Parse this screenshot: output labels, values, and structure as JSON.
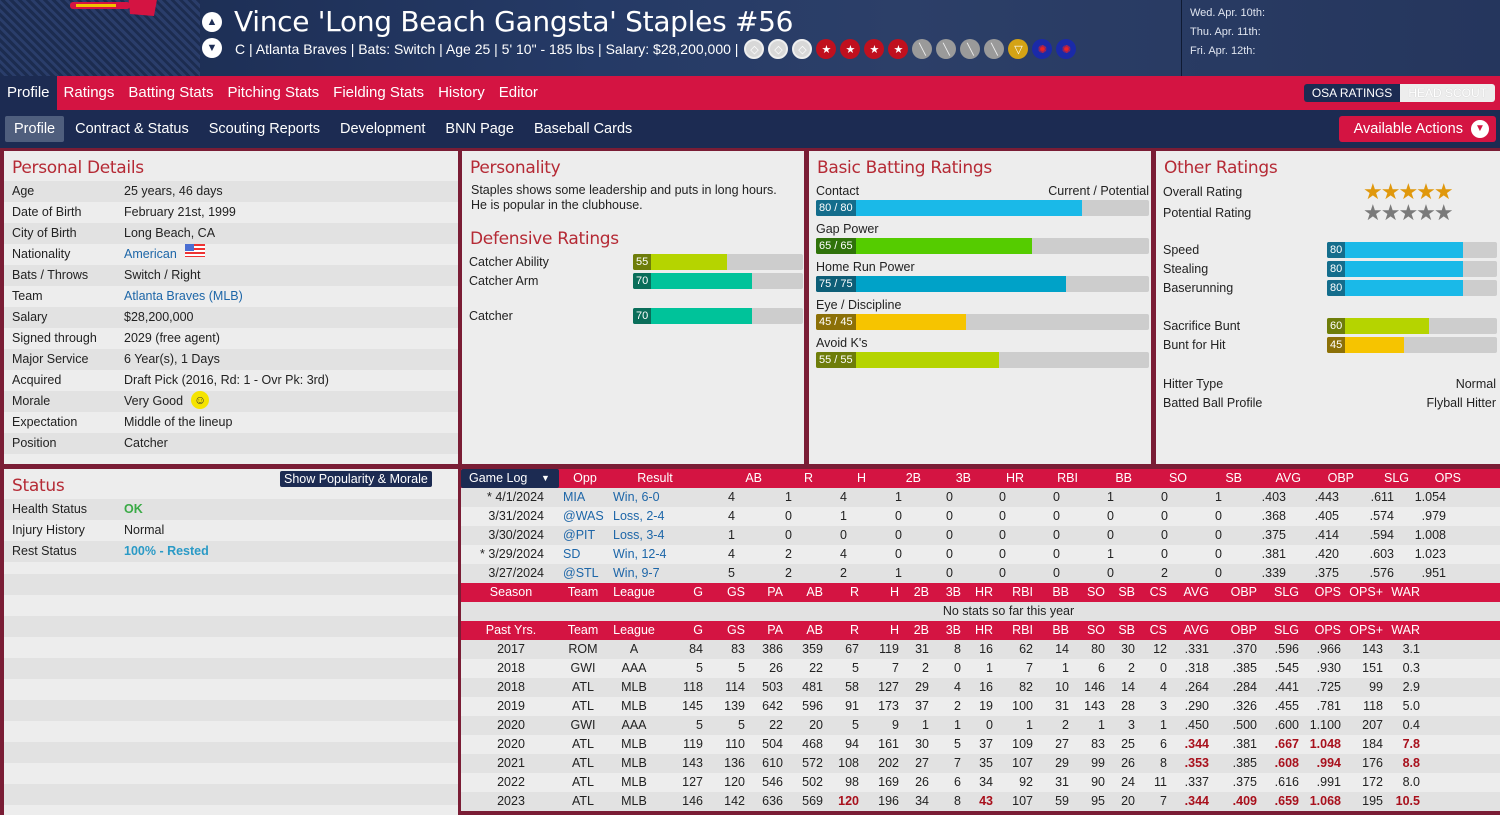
{
  "header": {
    "player_name": "Vince 'Long Beach Gangsta' Staples  #56",
    "subline": "C | Atlanta Braves  |  Bats: Switch  |  Age 25  |  5' 10\" - 185 lbs  |  Salary: $28,200,000  |",
    "badges": [
      "diamond",
      "diamond",
      "diamond",
      "star",
      "star",
      "star",
      "star",
      "bat",
      "bat",
      "bat",
      "bat",
      "glove",
      "medal",
      "medal"
    ],
    "schedule": [
      "Wed. Apr. 10th:",
      "Thu. Apr. 11th:",
      "Fri. Apr. 12th:"
    ]
  },
  "main_nav": {
    "tabs": [
      "Profile",
      "Ratings",
      "Batting Stats",
      "Pitching Stats",
      "Fielding Stats",
      "History",
      "Editor"
    ],
    "osa_ratings": "OSA RATINGS",
    "head_scout": "HEAD SCOUT"
  },
  "sub_nav": {
    "tabs": [
      "Profile",
      "Contract & Status",
      "Scouting Reports",
      "Development",
      "BNN Page",
      "Baseball Cards"
    ],
    "actions": "Available Actions"
  },
  "personal": {
    "title": "Personal Details",
    "rows": [
      {
        "k": "Age",
        "v": "25 years, 46 days"
      },
      {
        "k": "Date of Birth",
        "v": "February 21st, 1999"
      },
      {
        "k": "City of Birth",
        "v": "Long Beach, CA"
      },
      {
        "k": "Nationality",
        "v": "American"
      },
      {
        "k": "Bats / Throws",
        "v": "Switch / Right"
      },
      {
        "k": "Team",
        "v": "Atlanta Braves (MLB)"
      },
      {
        "k": "Salary",
        "v": "$28,200,000"
      },
      {
        "k": "Signed through",
        "v": "2029 (free agent)"
      },
      {
        "k": "Major Service",
        "v": "6 Year(s), 1 Days"
      },
      {
        "k": "Acquired",
        "v": "Draft Pick (2016, Rd: 1 - Ovr Pk: 3rd)"
      },
      {
        "k": "Morale",
        "v": "Very Good"
      },
      {
        "k": "Expectation",
        "v": "Middle of the lineup"
      },
      {
        "k": "Position",
        "v": "Catcher"
      }
    ]
  },
  "personality": {
    "title": "Personality",
    "text": "Staples shows some leadership and puts in long hours. He is popular in the clubhouse."
  },
  "defensive": {
    "title": "Defensive Ratings",
    "rows": [
      {
        "k": "Catcher Ability",
        "v": 55,
        "label": "55",
        "color": "#b5d400",
        "dark": "#6e7d0a"
      },
      {
        "k": "Catcher Arm",
        "v": 70,
        "label": "70",
        "color": "#00c39a",
        "dark": "#0a6e5a"
      },
      {
        "k": "Catcher",
        "v": 70,
        "label": "70",
        "color": "#00c39a",
        "dark": "#0a6e5a"
      }
    ]
  },
  "batting": {
    "title": "Basic Batting Ratings",
    "header_right": "Current / Potential",
    "rows": [
      {
        "k": "Contact",
        "v": 80,
        "label": "80 / 80",
        "color": "#1ab9e8",
        "dark": "#146d8c"
      },
      {
        "k": "Gap Power",
        "v": 65,
        "label": "65 / 65",
        "color": "#55cc00",
        "dark": "#2f720a"
      },
      {
        "k": "Home Run Power",
        "v": 75,
        "label": "75 / 75",
        "color": "#00a2c8",
        "dark": "#0d5e77"
      },
      {
        "k": "Eye / Discipline",
        "v": 45,
        "label": "45 / 45",
        "color": "#f6c400",
        "dark": "#8c7008"
      },
      {
        "k": "Avoid K's",
        "v": 55,
        "label": "55 / 55",
        "color": "#b5d400",
        "dark": "#6e7d0a"
      }
    ]
  },
  "other": {
    "title": "Other Ratings",
    "overall_label": "Overall Rating",
    "potential_label": "Potential Rating",
    "overall_stars": 5,
    "potential_stars": 5,
    "bars": [
      {
        "k": "Speed",
        "v": 80,
        "label": "80",
        "color": "#1ab9e8",
        "dark": "#146d8c"
      },
      {
        "k": "Stealing",
        "v": 80,
        "label": "80",
        "color": "#1ab9e8",
        "dark": "#146d8c"
      },
      {
        "k": "Baserunning",
        "v": 80,
        "label": "80",
        "color": "#1ab9e8",
        "dark": "#146d8c"
      },
      {
        "k": "Sacrifice Bunt",
        "v": 60,
        "label": "60",
        "color": "#b5d400",
        "dark": "#6e7d0a"
      },
      {
        "k": "Bunt for Hit",
        "v": 45,
        "label": "45",
        "color": "#f6c400",
        "dark": "#8c7008"
      }
    ],
    "hitter_type_label": "Hitter Type",
    "hitter_type": "Normal",
    "batted_ball_label": "Batted Ball Profile",
    "batted_ball": "Flyball Hitter"
  },
  "status": {
    "title": "Status",
    "button": "Show Popularity & Morale",
    "rows": [
      {
        "k": "Health Status",
        "v": "OK",
        "color": "#3aaa46"
      },
      {
        "k": "Injury History",
        "v": "Normal",
        "color": "#222222"
      },
      {
        "k": "Rest Status",
        "v": "100% - Rested",
        "color": "#2a9ac6"
      }
    ]
  },
  "game_log": {
    "selector": "Game Log",
    "headers": [
      "Opp",
      "Result",
      "AB",
      "R",
      "H",
      "2B",
      "3B",
      "HR",
      "RBI",
      "BB",
      "SO",
      "SB",
      "AVG",
      "OBP",
      "SLG",
      "OPS"
    ],
    "rows": [
      {
        "date": "* 4/1/2024",
        "opp": "MIA",
        "result": "Win, 6-0",
        "stats": [
          "4",
          "1",
          "4",
          "1",
          "0",
          "0",
          "0",
          "1",
          "0",
          "1",
          ".403",
          ".443",
          ".611",
          "1.054"
        ]
      },
      {
        "date": "3/31/2024",
        "opp": "@WAS",
        "result": "Loss, 2-4",
        "stats": [
          "4",
          "0",
          "1",
          "0",
          "0",
          "0",
          "0",
          "0",
          "0",
          "0",
          ".368",
          ".405",
          ".574",
          ".979"
        ]
      },
      {
        "date": "3/30/2024",
        "opp": "@PIT",
        "result": "Loss, 3-4",
        "stats": [
          "1",
          "0",
          "0",
          "0",
          "0",
          "0",
          "0",
          "0",
          "0",
          "0",
          ".375",
          ".414",
          ".594",
          "1.008"
        ]
      },
      {
        "date": "* 3/29/2024",
        "opp": "SD",
        "result": "Win, 12-4",
        "stats": [
          "4",
          "2",
          "4",
          "0",
          "0",
          "0",
          "0",
          "1",
          "0",
          "0",
          ".381",
          ".420",
          ".603",
          "1.023"
        ]
      },
      {
        "date": "3/27/2024",
        "opp": "@STL",
        "result": "Win, 9-7",
        "stats": [
          "5",
          "2",
          "2",
          "1",
          "0",
          "0",
          "0",
          "0",
          "2",
          "0",
          ".339",
          ".375",
          ".576",
          ".951"
        ]
      }
    ]
  },
  "season": {
    "headers": [
      "Season",
      "Team",
      "League",
      "G",
      "GS",
      "PA",
      "AB",
      "R",
      "H",
      "2B",
      "3B",
      "HR",
      "RBI",
      "BB",
      "SO",
      "SB",
      "CS",
      "AVG",
      "OBP",
      "SLG",
      "OPS",
      "OPS+",
      "WAR"
    ],
    "empty": "No stats so far this year"
  },
  "past": {
    "headers": [
      "Past Yrs.",
      "Team",
      "League",
      "G",
      "GS",
      "PA",
      "AB",
      "R",
      "H",
      "2B",
      "3B",
      "HR",
      "RBI",
      "BB",
      "SO",
      "SB",
      "CS",
      "AVG",
      "OBP",
      "SLG",
      "OPS",
      "OPS+",
      "WAR"
    ],
    "rows": [
      {
        "cells": [
          "2017",
          "ROM",
          "A",
          "84",
          "83",
          "386",
          "359",
          "67",
          "119",
          "31",
          "8",
          "16",
          "62",
          "14",
          "80",
          "30",
          "12",
          ".331",
          ".370",
          ".596",
          ".966",
          "143",
          "3.1"
        ],
        "hl": []
      },
      {
        "cells": [
          "2018",
          "GWI",
          "AAA",
          "5",
          "5",
          "26",
          "22",
          "5",
          "7",
          "2",
          "0",
          "1",
          "7",
          "1",
          "6",
          "2",
          "0",
          ".318",
          ".385",
          ".545",
          ".930",
          "151",
          "0.3"
        ],
        "hl": []
      },
      {
        "cells": [
          "2018",
          "ATL",
          "MLB",
          "118",
          "114",
          "503",
          "481",
          "58",
          "127",
          "29",
          "4",
          "16",
          "82",
          "10",
          "146",
          "14",
          "4",
          ".264",
          ".284",
          ".441",
          ".725",
          "99",
          "2.9"
        ],
        "hl": []
      },
      {
        "cells": [
          "2019",
          "ATL",
          "MLB",
          "145",
          "139",
          "642",
          "596",
          "91",
          "173",
          "37",
          "2",
          "19",
          "100",
          "31",
          "143",
          "28",
          "3",
          ".290",
          ".326",
          ".455",
          ".781",
          "118",
          "5.0"
        ],
        "hl": []
      },
      {
        "cells": [
          "2020",
          "GWI",
          "AAA",
          "5",
          "5",
          "22",
          "20",
          "5",
          "9",
          "1",
          "1",
          "0",
          "1",
          "2",
          "1",
          "3",
          "1",
          ".450",
          ".500",
          ".600",
          "1.100",
          "207",
          "0.4"
        ],
        "hl": []
      },
      {
        "cells": [
          "2020",
          "ATL",
          "MLB",
          "119",
          "110",
          "504",
          "468",
          "94",
          "161",
          "30",
          "5",
          "37",
          "109",
          "27",
          "83",
          "25",
          "6",
          ".344",
          ".381",
          ".667",
          "1.048",
          "184",
          "7.8"
        ],
        "hl": [
          17,
          19,
          20,
          22
        ]
      },
      {
        "cells": [
          "2021",
          "ATL",
          "MLB",
          "143",
          "136",
          "610",
          "572",
          "108",
          "202",
          "27",
          "7",
          "35",
          "107",
          "29",
          "99",
          "26",
          "8",
          ".353",
          ".385",
          ".608",
          ".994",
          "176",
          "8.8"
        ],
        "hl": [
          17,
          19,
          20,
          22
        ]
      },
      {
        "cells": [
          "2022",
          "ATL",
          "MLB",
          "127",
          "120",
          "546",
          "502",
          "98",
          "169",
          "26",
          "6",
          "34",
          "92",
          "31",
          "90",
          "24",
          "11",
          ".337",
          ".375",
          ".616",
          ".991",
          "172",
          "8.0"
        ],
        "hl": []
      },
      {
        "cells": [
          "2023",
          "ATL",
          "MLB",
          "146",
          "142",
          "636",
          "569",
          "120",
          "196",
          "34",
          "8",
          "43",
          "107",
          "59",
          "95",
          "20",
          "7",
          ".344",
          ".409",
          ".659",
          "1.068",
          "195",
          "10.5"
        ],
        "hl": [
          7,
          11,
          17,
          18,
          19,
          20,
          22
        ]
      }
    ]
  }
}
